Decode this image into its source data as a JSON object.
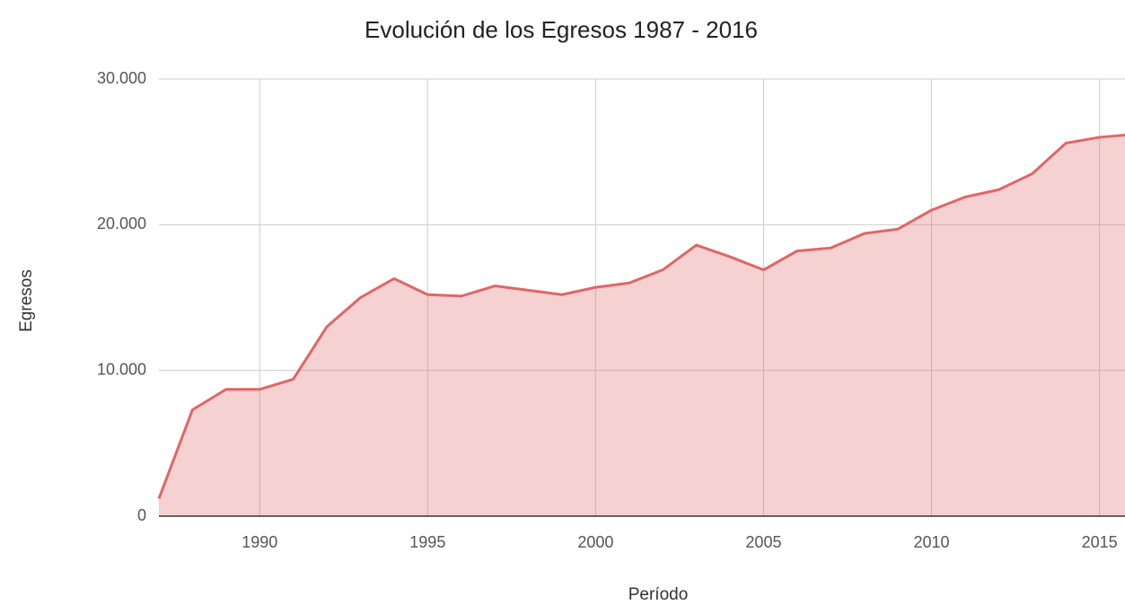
{
  "chart_data": {
    "type": "area",
    "title": "Evolución de los Egresos 1987 - 2016",
    "x_label": "Período",
    "y_label": "Egresos",
    "x": [
      1987,
      1988,
      1989,
      1990,
      1991,
      1992,
      1993,
      1994,
      1995,
      1996,
      1997,
      1998,
      1999,
      2000,
      2001,
      2002,
      2003,
      2004,
      2005,
      2006,
      2007,
      2008,
      2009,
      2010,
      2011,
      2012,
      2013,
      2014,
      2015,
      2016
    ],
    "series": [
      {
        "name": "Egresos",
        "color": "#e06666",
        "values": [
          1200,
          7300,
          8700,
          8700,
          9400,
          13000,
          15000,
          16300,
          15200,
          15100,
          15800,
          15500,
          15200,
          15700,
          16000,
          16900,
          18600,
          17800,
          16900,
          18200,
          18400,
          19400,
          19700,
          21000,
          21900,
          22400,
          23500,
          25600,
          26000,
          26200
        ]
      }
    ],
    "xlim": [
      1987,
      2016
    ],
    "xticks": [
      1990,
      1995,
      2000,
      2005,
      2010,
      2015
    ],
    "ylim": [
      0,
      30000
    ],
    "yticks": [
      0,
      {
        "value": 10000,
        "label": "10.000"
      },
      {
        "value": 20000,
        "label": "20.000"
      },
      {
        "value": 30000,
        "label": "30.000"
      }
    ],
    "grid": true
  }
}
